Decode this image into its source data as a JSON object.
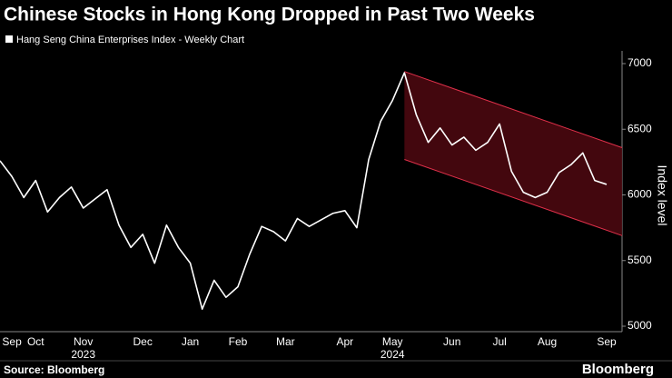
{
  "chart_data": {
    "type": "line",
    "title": "Chinese Stocks in Hong Kong Dropped in Past Two Weeks",
    "series": [
      {
        "name": "Hang Seng China Enterprises Index - Weekly Chart",
        "color": "#ffffff",
        "values": [
          6260,
          6140,
          5980,
          6110,
          5870,
          5980,
          6060,
          5900,
          5970,
          6040,
          5770,
          5600,
          5700,
          5480,
          5770,
          5600,
          5480,
          5130,
          5350,
          5220,
          5300,
          5550,
          5760,
          5720,
          5650,
          5820,
          5760,
          5810,
          5860,
          5880,
          5750,
          6270,
          6560,
          6720,
          6930,
          6610,
          6400,
          6510,
          6380,
          6440,
          6340,
          6400,
          6540,
          6180,
          6020,
          5980,
          6020,
          6170,
          6230,
          6320,
          6110,
          6080
        ]
      }
    ],
    "categories": [
      null,
      "Sep",
      null,
      "Oct",
      null,
      null,
      null,
      "Nov",
      null,
      null,
      null,
      null,
      "Dec",
      null,
      null,
      null,
      "Jan",
      null,
      null,
      null,
      "Feb",
      null,
      null,
      null,
      "Mar",
      null,
      null,
      null,
      null,
      "Apr",
      null,
      null,
      null,
      "May",
      null,
      null,
      null,
      null,
      "Jun",
      null,
      null,
      null,
      "Jul",
      null,
      null,
      null,
      "Aug",
      null,
      null,
      null,
      null,
      "Sep"
    ],
    "x_sublabels": [
      null,
      null,
      null,
      null,
      null,
      null,
      null,
      "2023",
      null,
      null,
      null,
      null,
      null,
      null,
      null,
      null,
      null,
      null,
      null,
      null,
      null,
      null,
      null,
      null,
      null,
      null,
      null,
      null,
      null,
      null,
      null,
      null,
      null,
      "2024",
      null,
      null,
      null,
      null,
      null,
      null,
      null,
      null,
      null,
      null,
      null,
      null,
      null,
      null,
      null,
      null,
      null,
      null
    ],
    "channel": {
      "upper": [
        6940,
        6360
      ],
      "lower": [
        6270,
        5690
      ]
    },
    "ylabel": "Index level",
    "ylim": [
      5000,
      7000
    ],
    "yticks": [
      5000,
      5500,
      6000,
      6500,
      7000
    ],
    "source": "Source: Bloomberg",
    "brand": "Bloomberg"
  }
}
